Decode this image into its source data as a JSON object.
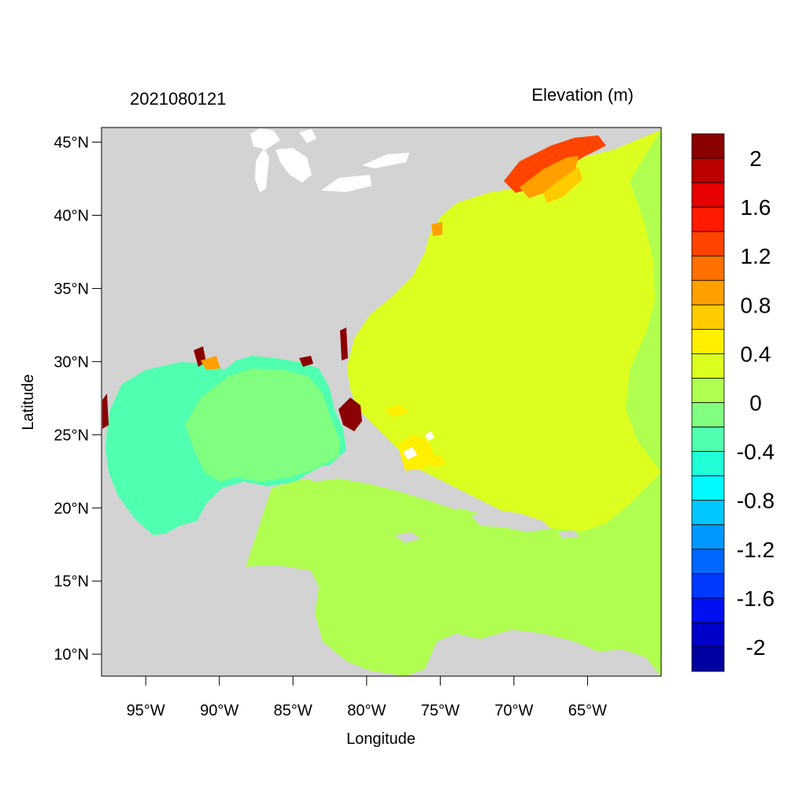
{
  "header": {
    "left_title": "2021080121",
    "right_title": "Elevation (m)"
  },
  "axes": {
    "xlabel": "Longitude",
    "ylabel": "Latitude",
    "x_ticks": [
      "95°W",
      "90°W",
      "85°W",
      "80°W",
      "75°W",
      "70°W",
      "65°W"
    ],
    "x_tick_values": [
      -95,
      -90,
      -85,
      -80,
      -75,
      -70,
      -65
    ],
    "y_ticks": [
      "45°N",
      "40°N",
      "35°N",
      "30°N",
      "25°N",
      "20°N",
      "15°N",
      "10°N"
    ],
    "y_tick_values": [
      45,
      40,
      35,
      30,
      25,
      20,
      15,
      10
    ],
    "xlim": [
      -98,
      -60
    ],
    "ylim": [
      8.5,
      46
    ]
  },
  "colorbar": {
    "labels": [
      "2",
      "1.6",
      "1.2",
      "0.8",
      "0.4",
      "0",
      "-0.4",
      "-0.8",
      "-1.2",
      "-1.6",
      "-2"
    ],
    "colors_top_to_bottom": [
      "#8b0000",
      "#bb0000",
      "#e60000",
      "#ff1a00",
      "#ff4400",
      "#ff7000",
      "#ffa000",
      "#ffcc00",
      "#fff000",
      "#dcff20",
      "#b0ff50",
      "#80ff80",
      "#50ffb0",
      "#20ffd8",
      "#00f8ff",
      "#00c8ff",
      "#0098ff",
      "#0068ff",
      "#0038ff",
      "#0010f0",
      "#0000c8",
      "#0000a0"
    ]
  },
  "colors": {
    "land": "#d3d3d3",
    "atlantic": "#dcff20",
    "caribbean": "#b0ff50",
    "gulf": "#50ffb0",
    "gulf_light": "#80ff80",
    "northeast_surge": "#ff4400",
    "surge_high": "#8b0000",
    "lakes": "#ffffff"
  }
}
